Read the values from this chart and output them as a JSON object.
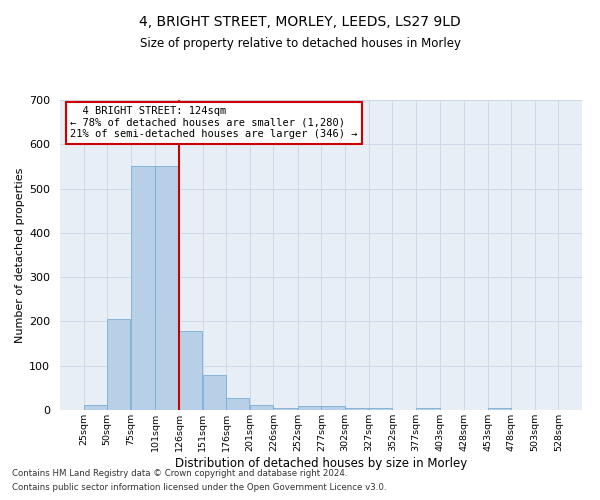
{
  "title_line1": "4, BRIGHT STREET, MORLEY, LEEDS, LS27 9LD",
  "title_line2": "Size of property relative to detached houses in Morley",
  "xlabel": "Distribution of detached houses by size in Morley",
  "ylabel": "Number of detached properties",
  "footer_line1": "Contains HM Land Registry data © Crown copyright and database right 2024.",
  "footer_line2": "Contains public sector information licensed under the Open Government Licence v3.0.",
  "annotation_line1": "  4 BRIGHT STREET: 124sqm  ",
  "annotation_line2": "← 78% of detached houses are smaller (1,280)",
  "annotation_line3": "21% of semi-detached houses are larger (346) →",
  "bar_left_edges": [
    25,
    50,
    75,
    101,
    126,
    151,
    176,
    201,
    226,
    252,
    277,
    302,
    327,
    352,
    377,
    403,
    428,
    453,
    478,
    503
  ],
  "bar_widths": [
    25,
    25,
    26,
    25,
    25,
    25,
    25,
    25,
    26,
    25,
    25,
    25,
    25,
    25,
    26,
    25,
    25,
    25,
    25,
    25
  ],
  "bar_heights": [
    12,
    205,
    550,
    550,
    178,
    78,
    28,
    12,
    5,
    8,
    8,
    5,
    5,
    0,
    5,
    0,
    0,
    5,
    0,
    0
  ],
  "bar_color": "#b8cfe8",
  "bar_edgecolor": "#7aafd4",
  "vline_x": 126,
  "vline_color": "#cc0000",
  "ylim": [
    0,
    700
  ],
  "yticks": [
    0,
    100,
    200,
    300,
    400,
    500,
    600,
    700
  ],
  "xtick_labels": [
    "25sqm",
    "50sqm",
    "75sqm",
    "101sqm",
    "126sqm",
    "151sqm",
    "176sqm",
    "201sqm",
    "226sqm",
    "252sqm",
    "277sqm",
    "302sqm",
    "327sqm",
    "352sqm",
    "377sqm",
    "403sqm",
    "428sqm",
    "453sqm",
    "478sqm",
    "503sqm",
    "528sqm"
  ],
  "xtick_positions": [
    25,
    50,
    75,
    101,
    126,
    151,
    176,
    201,
    226,
    252,
    277,
    302,
    327,
    352,
    377,
    403,
    428,
    453,
    478,
    503,
    528
  ],
  "xlim": [
    0,
    553
  ],
  "grid_color": "#cdd8e8",
  "background_color": "#e8eef5",
  "annotation_box_edgecolor": "#cc0000",
  "annotation_fontsize": 7.5,
  "title1_fontsize": 10,
  "title2_fontsize": 8.5,
  "ylabel_fontsize": 8,
  "xlabel_fontsize": 8.5,
  "footer_fontsize": 6.2
}
